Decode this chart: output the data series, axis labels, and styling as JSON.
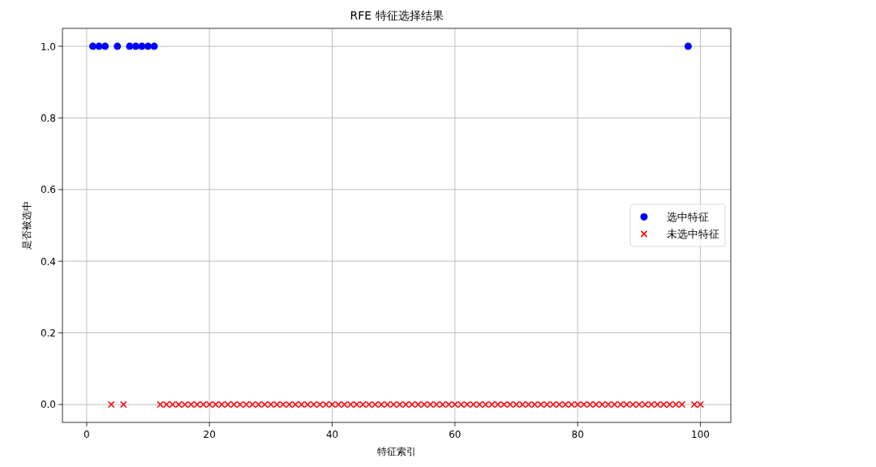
{
  "chart_data": {
    "type": "scatter",
    "title": "RFE 特征选择结果",
    "xlabel": "特征索引",
    "ylabel": "是否被选中",
    "series": [
      {
        "name": "选中特征",
        "color": "#0000ff",
        "marker": "circle",
        "x": [
          1,
          2,
          3,
          5,
          7,
          8,
          9,
          10,
          11,
          98
        ],
        "values": [
          1,
          1,
          1,
          1,
          1,
          1,
          1,
          1,
          1,
          1
        ]
      },
      {
        "name": "未选中特征",
        "color": "#ff0000",
        "marker": "cross",
        "x": [
          4,
          6,
          12,
          13,
          14,
          15,
          16,
          17,
          18,
          19,
          20,
          21,
          22,
          23,
          24,
          25,
          26,
          27,
          28,
          29,
          30,
          31,
          32,
          33,
          34,
          35,
          36,
          37,
          38,
          39,
          40,
          41,
          42,
          43,
          44,
          45,
          46,
          47,
          48,
          49,
          50,
          51,
          52,
          53,
          54,
          55,
          56,
          57,
          58,
          59,
          60,
          61,
          62,
          63,
          64,
          65,
          66,
          67,
          68,
          69,
          70,
          71,
          72,
          73,
          74,
          75,
          76,
          77,
          78,
          79,
          80,
          81,
          82,
          83,
          84,
          85,
          86,
          87,
          88,
          89,
          90,
          91,
          92,
          93,
          94,
          95,
          96,
          97,
          99,
          100
        ],
        "values": [
          0,
          0,
          0,
          0,
          0,
          0,
          0,
          0,
          0,
          0,
          0,
          0,
          0,
          0,
          0,
          0,
          0,
          0,
          0,
          0,
          0,
          0,
          0,
          0,
          0,
          0,
          0,
          0,
          0,
          0,
          0,
          0,
          0,
          0,
          0,
          0,
          0,
          0,
          0,
          0,
          0,
          0,
          0,
          0,
          0,
          0,
          0,
          0,
          0,
          0,
          0,
          0,
          0,
          0,
          0,
          0,
          0,
          0,
          0,
          0,
          0,
          0,
          0,
          0,
          0,
          0,
          0,
          0,
          0,
          0,
          0,
          0,
          0,
          0,
          0,
          0,
          0,
          0,
          0,
          0,
          0,
          0,
          0,
          0,
          0,
          0,
          0,
          0,
          0,
          0
        ]
      }
    ],
    "xlim": [
      -3.95,
      104.95
    ],
    "xticks": [
      0,
      20,
      40,
      60,
      80,
      100
    ],
    "ylim": [
      -0.05,
      1.05
    ],
    "yticks": [
      {
        "value": 0,
        "label": "0.0"
      },
      {
        "value": 0.2,
        "label": "0.2"
      },
      {
        "value": 0.4,
        "label": "0.4"
      },
      {
        "value": 0.6,
        "label": "0.6"
      },
      {
        "value": 0.8,
        "label": "0.8"
      },
      {
        "value": 1,
        "label": "1.0"
      }
    ],
    "grid": true,
    "legend": "right"
  }
}
